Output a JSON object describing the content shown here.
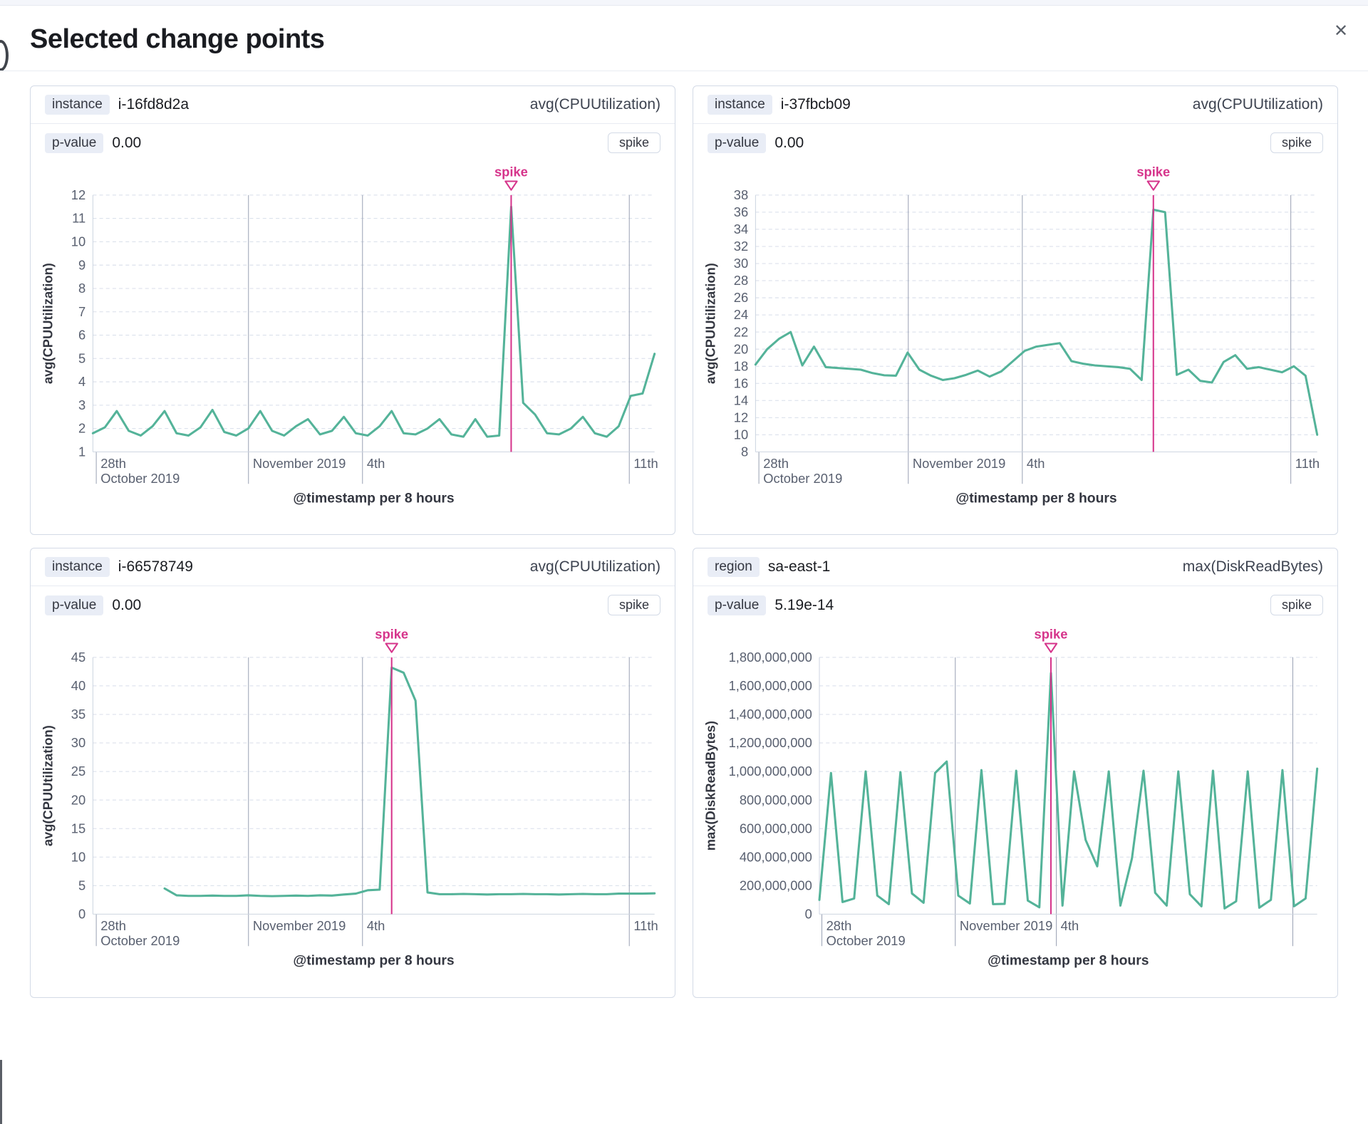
{
  "modal": {
    "title": "Selected change points",
    "close_icon": "✕"
  },
  "colors": {
    "series_line": "#54b399",
    "annotation": "#d6348b",
    "grid_dash": "#d8deea",
    "axis_line": "#cdd4e0",
    "time_marker": "#9aa2b4",
    "tick_text": "#596070",
    "axis_title_text": "#343741"
  },
  "chart_data": [
    {
      "type": "line",
      "key_label": "instance",
      "key_value": "i-16fd8d2a",
      "metric_label": "avg(CPUUtilization)",
      "p_value_label": "p-value",
      "p_value": "0.00",
      "change_type": "spike",
      "annotation": "spike",
      "y_axis_title": "avg(CPUUtilization)",
      "x_axis_title": "@timestamp per 8 hours",
      "y_min": 1,
      "y_max": 12,
      "y_tick_labels": [
        "12",
        "11",
        "10",
        "9",
        "8",
        "7",
        "6",
        "5",
        "4",
        "3",
        "2",
        "1"
      ],
      "x_ticks": [
        {
          "frac": 0.006,
          "line1": "28th",
          "line2": "October 2019",
          "grid": "tick"
        },
        {
          "frac": 0.277,
          "line1": "November 2019",
          "line2": "",
          "grid": "line"
        },
        {
          "frac": 0.48,
          "line1": "4th",
          "line2": "",
          "grid": "line"
        },
        {
          "frac": 0.955,
          "line1": "11th",
          "line2": "",
          "grid": "line"
        }
      ],
      "values": [
        1.8,
        2.05,
        2.75,
        1.9,
        1.7,
        2.1,
        2.75,
        1.8,
        1.7,
        2.05,
        2.8,
        1.85,
        1.7,
        2.0,
        2.75,
        1.9,
        1.7,
        2.1,
        2.4,
        1.75,
        1.9,
        2.5,
        1.8,
        1.7,
        2.1,
        2.75,
        1.8,
        1.75,
        2.0,
        2.4,
        1.75,
        1.65,
        2.4,
        1.65,
        1.7,
        11.5,
        3.1,
        2.6,
        1.8,
        1.75,
        2.0,
        2.5,
        1.8,
        1.65,
        2.1,
        3.4,
        3.5,
        5.2
      ],
      "spike_index": 35
    },
    {
      "type": "line",
      "key_label": "instance",
      "key_value": "i-37fbcb09",
      "metric_label": "avg(CPUUtilization)",
      "p_value_label": "p-value",
      "p_value": "0.00",
      "change_type": "spike",
      "annotation": "spike",
      "y_axis_title": "avg(CPUUtilization)",
      "x_axis_title": "@timestamp per 8 hours",
      "y_min": 8,
      "y_max": 38,
      "y_tick_labels": [
        "38",
        "36",
        "34",
        "32",
        "30",
        "28",
        "26",
        "24",
        "22",
        "20",
        "18",
        "16",
        "14",
        "12",
        "10",
        "8"
      ],
      "x_ticks": [
        {
          "frac": 0.006,
          "line1": "28th",
          "line2": "October 2019",
          "grid": "tick"
        },
        {
          "frac": 0.272,
          "line1": "November 2019",
          "line2": "",
          "grid": "line"
        },
        {
          "frac": 0.475,
          "line1": "4th",
          "line2": "",
          "grid": "line"
        },
        {
          "frac": 0.953,
          "line1": "11th",
          "line2": "",
          "grid": "line"
        }
      ],
      "values": [
        18.2,
        20.0,
        21.2,
        22.0,
        18.1,
        20.3,
        17.9,
        17.8,
        17.7,
        17.6,
        17.2,
        16.95,
        16.9,
        19.6,
        17.6,
        16.9,
        16.4,
        16.6,
        17.0,
        17.5,
        16.8,
        17.4,
        18.6,
        19.8,
        20.3,
        20.5,
        20.7,
        18.6,
        18.3,
        18.1,
        18.0,
        17.9,
        17.7,
        16.4,
        36.3,
        36.0,
        17.0,
        17.6,
        16.3,
        16.1,
        18.5,
        19.3,
        17.7,
        17.9,
        17.6,
        17.3,
        18.0,
        16.9,
        10.0
      ],
      "spike_index": 34
    },
    {
      "type": "line",
      "key_label": "instance",
      "key_value": "i-66578749",
      "metric_label": "avg(CPUUtilization)",
      "p_value_label": "p-value",
      "p_value": "0.00",
      "change_type": "spike",
      "annotation": "spike",
      "y_axis_title": "avg(CPUUtilization)",
      "x_axis_title": "@timestamp per 8 hours",
      "y_min": 0,
      "y_max": 45,
      "y_tick_labels": [
        "45",
        "40",
        "35",
        "30",
        "25",
        "20",
        "15",
        "10",
        "5",
        "0"
      ],
      "x_ticks": [
        {
          "frac": 0.006,
          "line1": "28th",
          "line2": "October 2019",
          "grid": "tick"
        },
        {
          "frac": 0.277,
          "line1": "November 2019",
          "line2": "",
          "grid": "line"
        },
        {
          "frac": 0.48,
          "line1": "4th",
          "line2": "",
          "grid": "line"
        },
        {
          "frac": 0.955,
          "line1": "11th",
          "line2": "",
          "grid": "line"
        }
      ],
      "values": [
        null,
        null,
        null,
        null,
        null,
        null,
        4.5,
        3.3,
        3.2,
        3.2,
        3.25,
        3.2,
        3.2,
        3.3,
        3.2,
        3.15,
        3.2,
        3.25,
        3.2,
        3.3,
        3.25,
        3.45,
        3.6,
        4.2,
        4.3,
        43.2,
        42.3,
        37.4,
        3.8,
        3.5,
        3.5,
        3.55,
        3.5,
        3.45,
        3.5,
        3.5,
        3.55,
        3.5,
        3.5,
        3.45,
        3.5,
        3.55,
        3.5,
        3.5,
        3.6,
        3.6,
        3.6,
        3.65
      ],
      "spike_index": 25
    },
    {
      "type": "line",
      "key_label": "region",
      "key_value": "sa-east-1",
      "metric_label": "max(DiskReadBytes)",
      "p_value_label": "p-value",
      "p_value": "5.19e-14",
      "change_type": "spike",
      "annotation": "spike",
      "y_axis_title": "max(DiskReadBytes)",
      "x_axis_title": "@timestamp per 8 hours",
      "y_min": 0,
      "y_max": 1800000000,
      "y_tick_labels": [
        "1,800,000,000",
        "1,600,000,000",
        "1,400,000,000",
        "1,200,000,000",
        "1,000,000,000",
        "800,000,000",
        "600,000,000",
        "400,000,000",
        "200,000,000",
        "0"
      ],
      "x_ticks": [
        {
          "frac": 0.005,
          "line1": "28th",
          "line2": "October 2019",
          "grid": "tick"
        },
        {
          "frac": 0.273,
          "line1": "November 2019",
          "line2": "",
          "grid": "line"
        },
        {
          "frac": 0.476,
          "line1": "4th",
          "line2": "",
          "grid": "line"
        },
        {
          "frac": 0.951,
          "line1": "",
          "line2": "",
          "grid": "line"
        }
      ],
      "values": [
        100000000,
        990000000,
        85000000,
        110000000,
        1000000000,
        130000000,
        70000000,
        995000000,
        145000000,
        80000000,
        990000000,
        1070000000,
        130000000,
        75000000,
        1010000000,
        70000000,
        72000000,
        1005000000,
        95000000,
        48000000,
        1690000000,
        60000000,
        1000000000,
        520000000,
        335000000,
        1000000000,
        60000000,
        390000000,
        1005000000,
        150000000,
        60000000,
        1000000000,
        140000000,
        55000000,
        1005000000,
        40000000,
        90000000,
        1000000000,
        45000000,
        100000000,
        1010000000,
        55000000,
        110000000,
        1020000000
      ],
      "spike_index": 20
    }
  ]
}
